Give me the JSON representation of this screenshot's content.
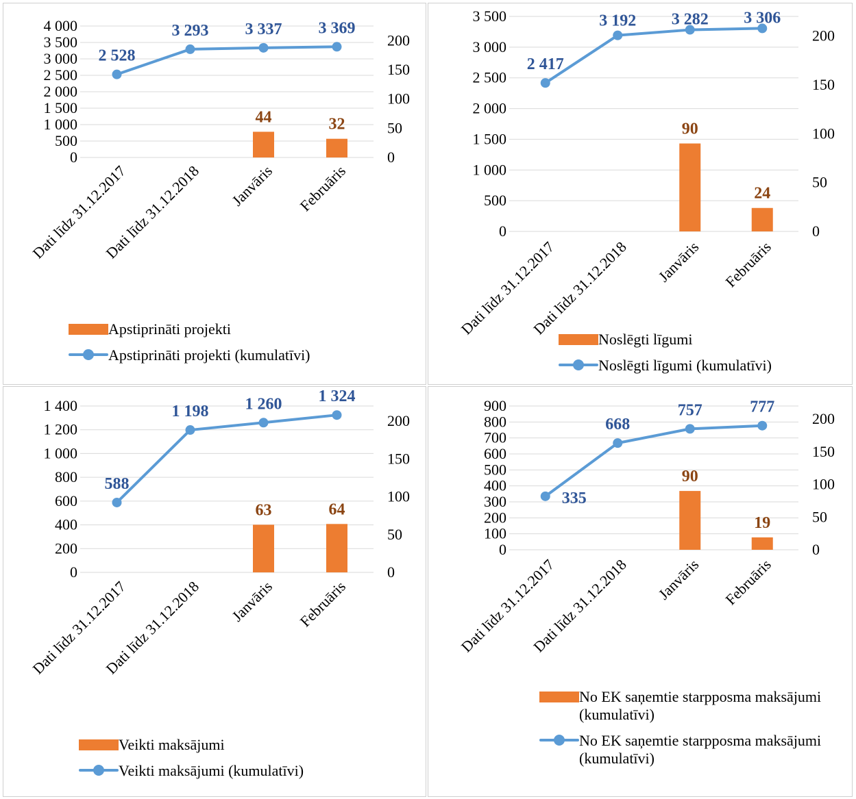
{
  "colors": {
    "bar": "#ED7D31",
    "line": "#5B9BD5",
    "bar_label": "#8B4513",
    "line_label": "#2F5597",
    "grid": "#D9D9D9",
    "text": "#000000"
  },
  "chart_data": [
    {
      "type": "bar",
      "categories": [
        "Dati līdz 31.12.2017",
        "Dati līdz 31.12.2018",
        "Janvāris",
        "Februāris"
      ],
      "series": [
        {
          "name": "Apstiprināti projekti",
          "type": "bar",
          "axis": "secondary",
          "values": [
            null,
            null,
            44,
            32
          ],
          "labels": [
            "",
            "",
            "44",
            "32"
          ]
        },
        {
          "name": "Apstiprināti projekti (kumulatīvi)",
          "type": "line",
          "axis": "primary",
          "values": [
            2528,
            3293,
            3337,
            3369
          ],
          "labels": [
            "2 528",
            "3 293",
            "3 337",
            "3 369"
          ]
        }
      ],
      "y_left": {
        "min": 0,
        "max": 4000,
        "ticks": [
          0,
          500,
          1000,
          1500,
          2000,
          2500,
          3000,
          3500,
          4000
        ],
        "tick_labels": [
          "0",
          "500",
          "1 000",
          "1 500",
          "2 000",
          "2 500",
          "3 000",
          "3 500",
          "4 000"
        ]
      },
      "y_right": {
        "min": 0,
        "max": 225,
        "ticks": [
          0,
          50,
          100,
          150,
          200
        ],
        "tick_labels": [
          "0",
          "50",
          "100",
          "150",
          "200"
        ]
      },
      "grid": true,
      "legend": "bottom"
    },
    {
      "type": "bar",
      "categories": [
        "Dati līdz 31.12.2017",
        "Dati līdz 31.12.2018",
        "Janvāris",
        "Februāris"
      ],
      "series": [
        {
          "name": "Noslēgti līgumi",
          "type": "bar",
          "axis": "secondary",
          "values": [
            null,
            null,
            90,
            24
          ],
          "labels": [
            "",
            "",
            "90",
            "24"
          ]
        },
        {
          "name": "Noslēgti līgumi (kumulatīvi)",
          "type": "line",
          "axis": "primary",
          "values": [
            2417,
            3192,
            3282,
            3306
          ],
          "labels": [
            "2 417",
            "3 192",
            "3 282",
            "3 306"
          ]
        }
      ],
      "y_left": {
        "min": 0,
        "max": 3500,
        "ticks": [
          0,
          500,
          1000,
          1500,
          2000,
          2500,
          3000,
          3500
        ],
        "tick_labels": [
          "0",
          "500",
          "1 000",
          "1 500",
          "2 000",
          "2 500",
          "3 000",
          "3 500"
        ]
      },
      "y_right": {
        "min": 0,
        "max": 220,
        "ticks": [
          0,
          50,
          100,
          150,
          200
        ],
        "tick_labels": [
          "0",
          "50",
          "100",
          "150",
          "200"
        ]
      },
      "grid": true,
      "legend": "bottom"
    },
    {
      "type": "bar",
      "categories": [
        "Dati līdz 31.12.2017",
        "Dati līdz 31.12.2018",
        "Janvāris",
        "Februāris"
      ],
      "series": [
        {
          "name": "Veikti maksājumi",
          "type": "bar",
          "axis": "secondary",
          "values": [
            null,
            null,
            63,
            64
          ],
          "labels": [
            "",
            "",
            "63",
            "64"
          ]
        },
        {
          "name": "Veikti maksājumi (kumulatīvi)",
          "type": "line",
          "axis": "primary",
          "values": [
            588,
            1198,
            1260,
            1324
          ],
          "labels": [
            "588",
            "1 198",
            "1 260",
            "1 324"
          ]
        }
      ],
      "y_left": {
        "min": 0,
        "max": 1400,
        "ticks": [
          0,
          200,
          400,
          600,
          800,
          1000,
          1200,
          1400
        ],
        "tick_labels": [
          "0",
          "200",
          "400",
          "600",
          "800",
          "1 000",
          "1 200",
          "1 400"
        ]
      },
      "y_right": {
        "min": 0,
        "max": 220,
        "ticks": [
          0,
          50,
          100,
          150,
          200
        ],
        "tick_labels": [
          "0",
          "50",
          "100",
          "150",
          "200"
        ]
      },
      "grid": true,
      "legend": "bottom"
    },
    {
      "type": "bar",
      "categories": [
        "Dati līdz 31.12.2017",
        "Dati līdz 31.12.2018",
        "Janvāris",
        "Februāris"
      ],
      "series": [
        {
          "name": "No EK saņemtie starpposma maksājumi (kumulatīvi)",
          "type": "bar",
          "axis": "secondary",
          "values": [
            null,
            null,
            90,
            19
          ],
          "labels": [
            "",
            "",
            "90",
            "19"
          ]
        },
        {
          "name": "No EK saņemtie starpposma maksājumi (kumulatīvi)",
          "type": "line",
          "axis": "primary",
          "values": [
            335,
            668,
            757,
            777
          ],
          "labels": [
            "335",
            "668",
            "757",
            "777"
          ]
        }
      ],
      "y_left": {
        "min": 0,
        "max": 900,
        "ticks": [
          0,
          100,
          200,
          300,
          400,
          500,
          600,
          700,
          800,
          900
        ],
        "tick_labels": [
          "0",
          "100",
          "200",
          "300",
          "400",
          "500",
          "600",
          "700",
          "800",
          "900"
        ]
      },
      "y_right": {
        "min": 0,
        "max": 220,
        "ticks": [
          0,
          50,
          100,
          150,
          200
        ],
        "tick_labels": [
          "0",
          "50",
          "100",
          "150",
          "200"
        ]
      },
      "grid": true,
      "legend": "bottom"
    }
  ]
}
